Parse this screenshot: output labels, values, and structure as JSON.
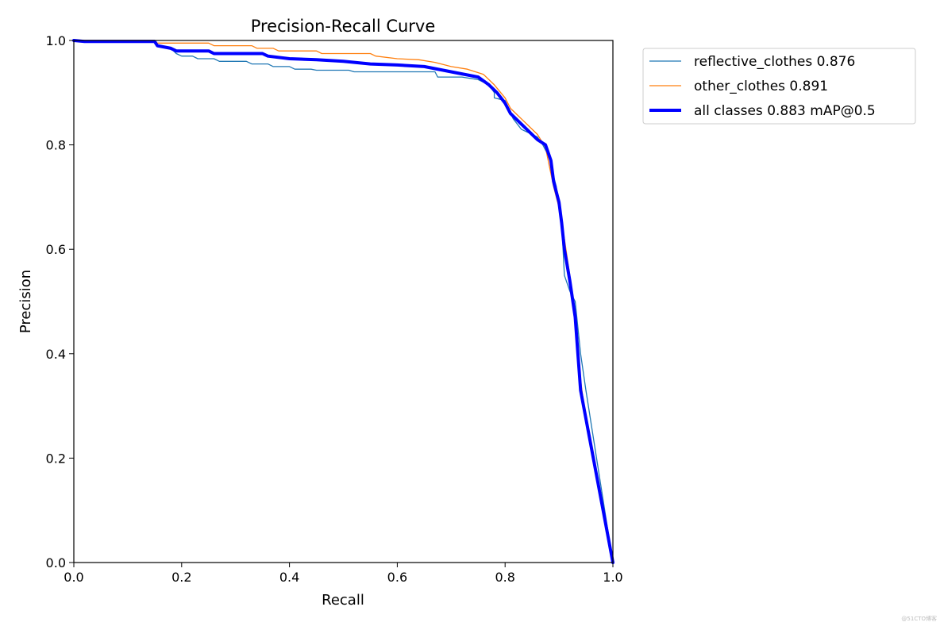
{
  "chart_data": {
    "type": "line",
    "title": "Precision-Recall Curve",
    "xlabel": "Recall",
    "ylabel": "Precision",
    "xlim": [
      0,
      1
    ],
    "ylim": [
      0,
      1
    ],
    "x_ticks": [
      "0.0",
      "0.2",
      "0.4",
      "0.6",
      "0.8",
      "1.0"
    ],
    "y_ticks": [
      "0.0",
      "0.2",
      "0.4",
      "0.6",
      "0.8",
      "1.0"
    ],
    "grid": false,
    "legend_position": "outside-top-right",
    "series": [
      {
        "name": "reflective_clothes 0.876",
        "color": "#1f77b4",
        "line_width": "thin",
        "points": [
          [
            0.0,
            1.0
          ],
          [
            0.15,
            1.0
          ],
          [
            0.155,
            0.99
          ],
          [
            0.18,
            0.985
          ],
          [
            0.19,
            0.975
          ],
          [
            0.2,
            0.97
          ],
          [
            0.22,
            0.97
          ],
          [
            0.23,
            0.965
          ],
          [
            0.26,
            0.965
          ],
          [
            0.27,
            0.96
          ],
          [
            0.32,
            0.96
          ],
          [
            0.33,
            0.955
          ],
          [
            0.36,
            0.955
          ],
          [
            0.37,
            0.95
          ],
          [
            0.4,
            0.95
          ],
          [
            0.41,
            0.945
          ],
          [
            0.44,
            0.945
          ],
          [
            0.45,
            0.943
          ],
          [
            0.51,
            0.943
          ],
          [
            0.52,
            0.94
          ],
          [
            0.58,
            0.94
          ],
          [
            0.63,
            0.94
          ],
          [
            0.67,
            0.94
          ],
          [
            0.675,
            0.93
          ],
          [
            0.72,
            0.93
          ],
          [
            0.75,
            0.925
          ],
          [
            0.77,
            0.915
          ],
          [
            0.78,
            0.9
          ],
          [
            0.78,
            0.89
          ],
          [
            0.8,
            0.885
          ],
          [
            0.815,
            0.85
          ],
          [
            0.83,
            0.83
          ],
          [
            0.86,
            0.815
          ],
          [
            0.87,
            0.8
          ],
          [
            0.885,
            0.77
          ],
          [
            0.89,
            0.74
          ],
          [
            0.895,
            0.72
          ],
          [
            0.9,
            0.68
          ],
          [
            0.905,
            0.65
          ],
          [
            0.91,
            0.55
          ],
          [
            0.92,
            0.52
          ],
          [
            0.93,
            0.5
          ],
          [
            0.94,
            0.4
          ],
          [
            0.95,
            0.33
          ],
          [
            1.0,
            0.0
          ]
        ]
      },
      {
        "name": "other_clothes 0.891",
        "color": "#ff7f0e",
        "line_width": "thin",
        "points": [
          [
            0.0,
            1.0
          ],
          [
            0.15,
            1.0
          ],
          [
            0.155,
            0.995
          ],
          [
            0.25,
            0.995
          ],
          [
            0.26,
            0.99
          ],
          [
            0.33,
            0.99
          ],
          [
            0.34,
            0.985
          ],
          [
            0.37,
            0.985
          ],
          [
            0.38,
            0.98
          ],
          [
            0.45,
            0.98
          ],
          [
            0.46,
            0.975
          ],
          [
            0.55,
            0.975
          ],
          [
            0.56,
            0.97
          ],
          [
            0.6,
            0.965
          ],
          [
            0.64,
            0.963
          ],
          [
            0.67,
            0.958
          ],
          [
            0.7,
            0.95
          ],
          [
            0.73,
            0.945
          ],
          [
            0.76,
            0.935
          ],
          [
            0.78,
            0.915
          ],
          [
            0.8,
            0.89
          ],
          [
            0.81,
            0.87
          ],
          [
            0.83,
            0.85
          ],
          [
            0.86,
            0.82
          ],
          [
            0.875,
            0.795
          ],
          [
            0.89,
            0.72
          ],
          [
            0.9,
            0.68
          ],
          [
            0.91,
            0.62
          ],
          [
            0.92,
            0.55
          ],
          [
            0.93,
            0.47
          ],
          [
            0.94,
            0.35
          ],
          [
            0.95,
            0.27
          ],
          [
            1.0,
            0.0
          ]
        ]
      },
      {
        "name": "all classes 0.883 mAP@0.5",
        "color": "#0000ff",
        "line_width": "thick",
        "points": [
          [
            0.0,
            1.0
          ],
          [
            0.02,
            0.998
          ],
          [
            0.15,
            0.998
          ],
          [
            0.155,
            0.99
          ],
          [
            0.18,
            0.985
          ],
          [
            0.19,
            0.98
          ],
          [
            0.25,
            0.98
          ],
          [
            0.26,
            0.975
          ],
          [
            0.35,
            0.975
          ],
          [
            0.36,
            0.97
          ],
          [
            0.4,
            0.965
          ],
          [
            0.45,
            0.963
          ],
          [
            0.5,
            0.96
          ],
          [
            0.55,
            0.955
          ],
          [
            0.6,
            0.953
          ],
          [
            0.65,
            0.95
          ],
          [
            0.7,
            0.94
          ],
          [
            0.75,
            0.93
          ],
          [
            0.77,
            0.915
          ],
          [
            0.785,
            0.9
          ],
          [
            0.8,
            0.88
          ],
          [
            0.81,
            0.86
          ],
          [
            0.83,
            0.84
          ],
          [
            0.86,
            0.81
          ],
          [
            0.875,
            0.8
          ],
          [
            0.885,
            0.77
          ],
          [
            0.89,
            0.73
          ],
          [
            0.9,
            0.69
          ],
          [
            0.905,
            0.65
          ],
          [
            0.91,
            0.6
          ],
          [
            0.92,
            0.54
          ],
          [
            0.93,
            0.47
          ],
          [
            0.935,
            0.4
          ],
          [
            0.94,
            0.33
          ],
          [
            1.0,
            0.0
          ]
        ]
      }
    ]
  },
  "watermark": "@51CTO博客"
}
